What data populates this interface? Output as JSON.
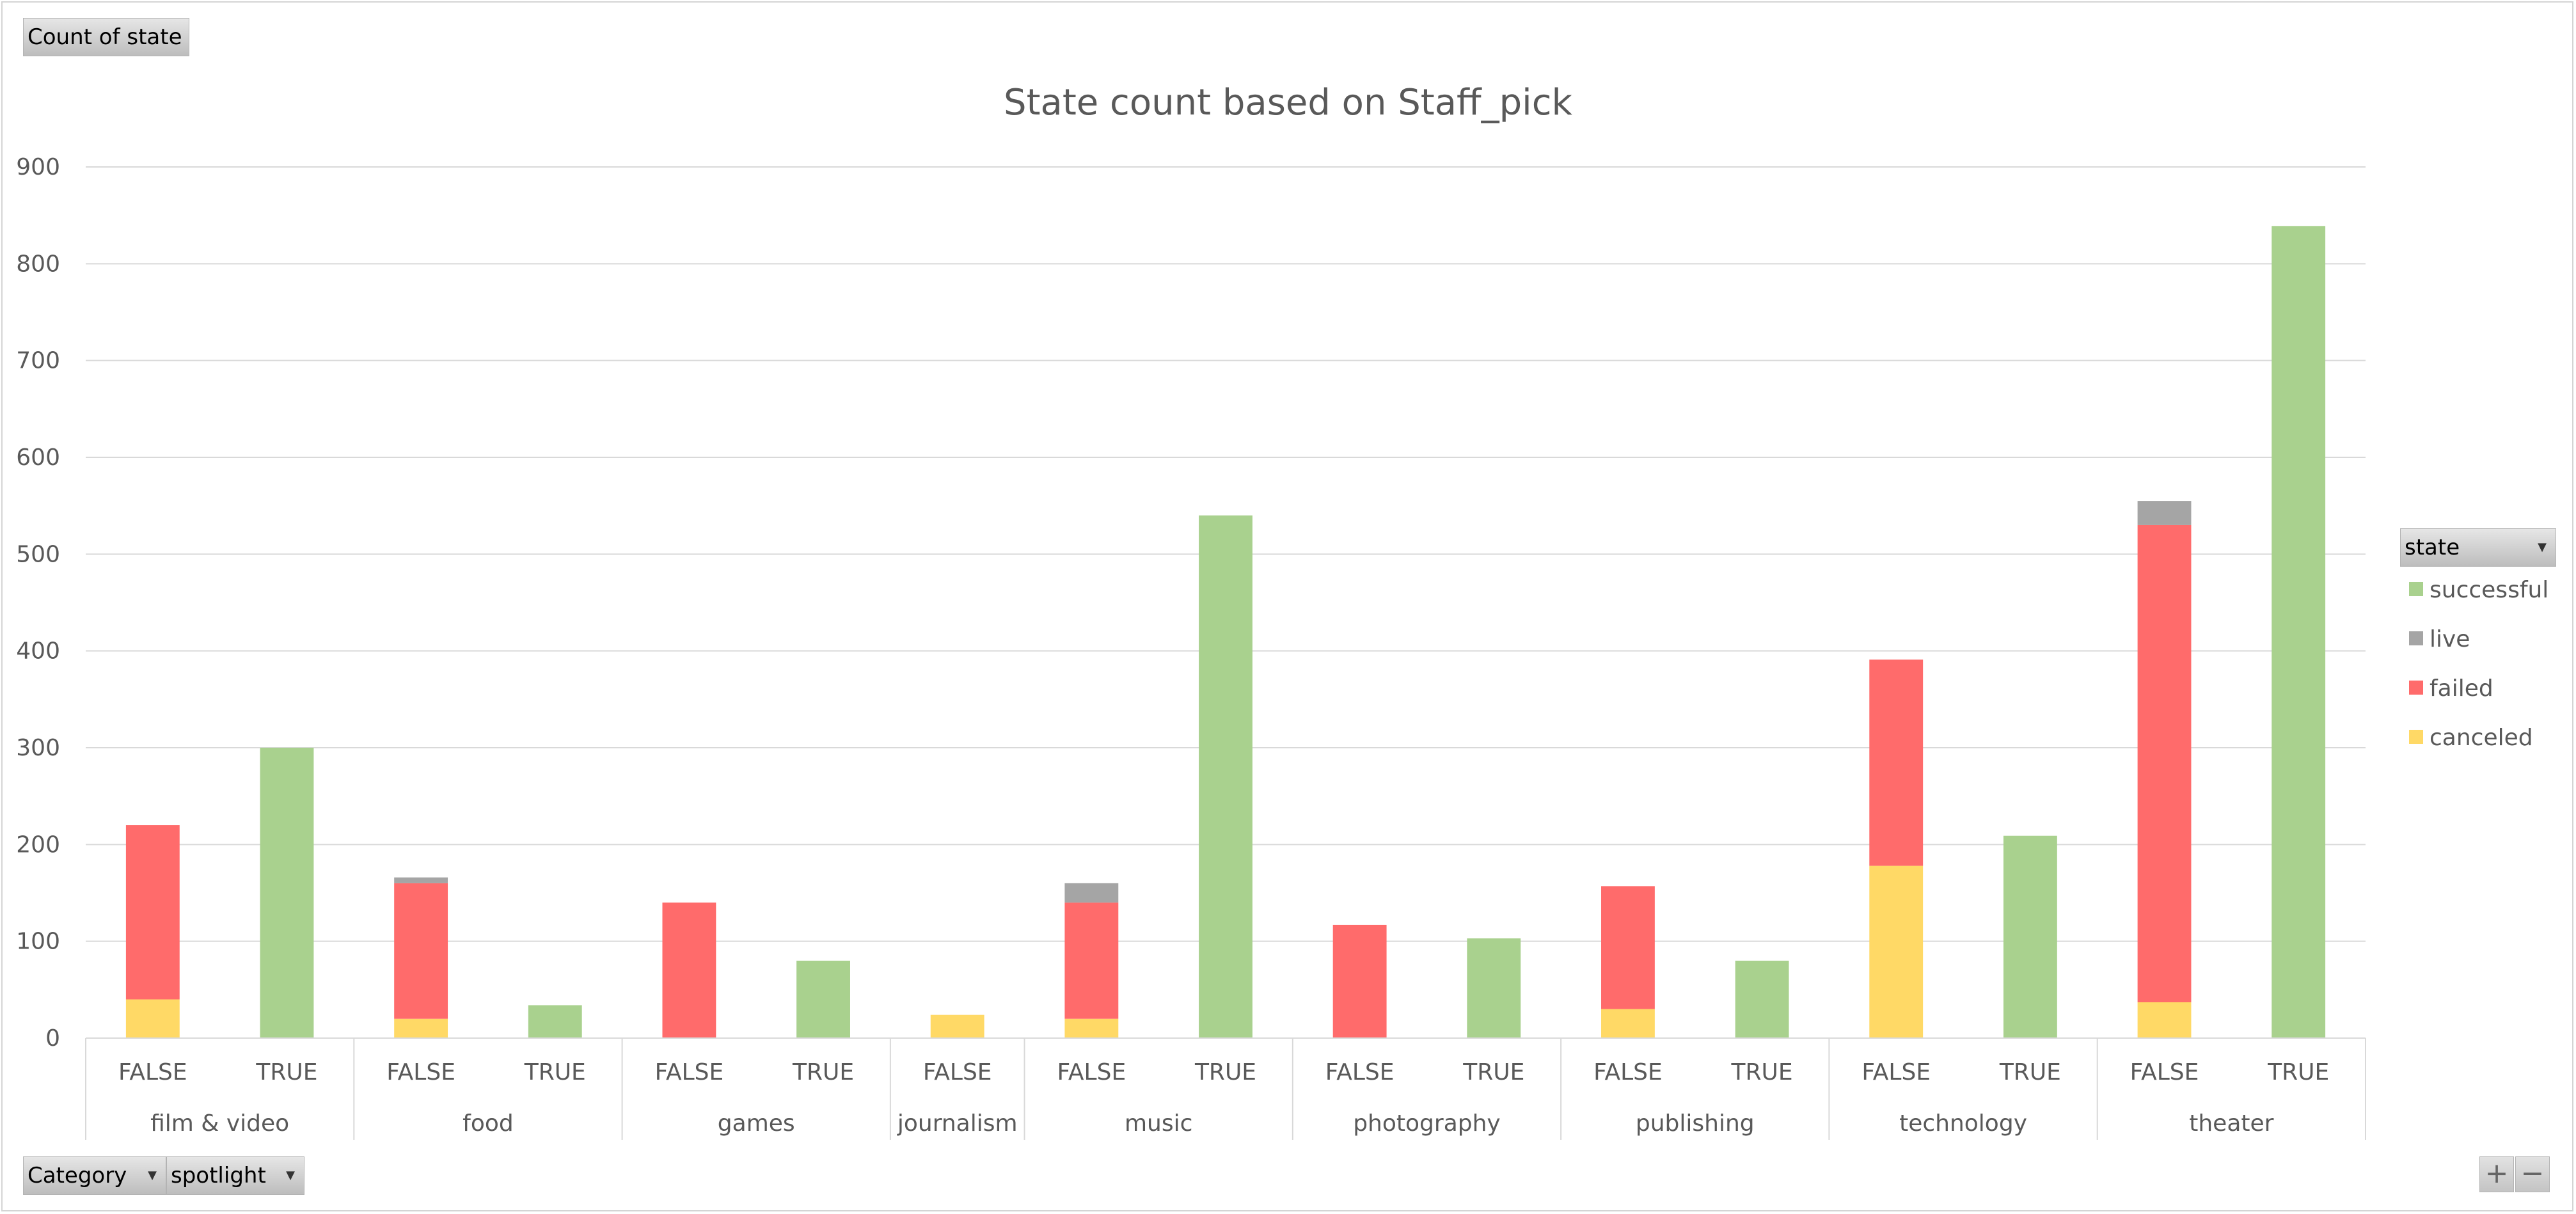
{
  "pivot": {
    "value_field": "Count of state",
    "legend_field": "state",
    "axis_fields": [
      "Category",
      "spotlight"
    ]
  },
  "controls": {
    "zoom_in": "+",
    "zoom_out": "−"
  },
  "colors": {
    "successful": "#a9d18e",
    "live": "#a5a5a5",
    "failed": "#ff6b6b",
    "canceled": "#ffd966",
    "gridline": "#d9d9d9",
    "axis_text": "#595959"
  },
  "chart_data": {
    "type": "bar",
    "stacked": true,
    "title": "State count based on Staff_pick",
    "xlabel": "",
    "ylabel": "",
    "ylim": [
      0,
      900
    ],
    "yticks": [
      0,
      100,
      200,
      300,
      400,
      500,
      600,
      700,
      800,
      900
    ],
    "grid": true,
    "legend_position": "right",
    "groups": [
      {
        "name": "film & video",
        "categories": [
          "FALSE",
          "TRUE"
        ]
      },
      {
        "name": "food",
        "categories": [
          "FALSE",
          "TRUE"
        ]
      },
      {
        "name": "games",
        "categories": [
          "FALSE",
          "TRUE"
        ]
      },
      {
        "name": "journalism",
        "categories": [
          "FALSE"
        ]
      },
      {
        "name": "music",
        "categories": [
          "FALSE",
          "TRUE"
        ]
      },
      {
        "name": "photography",
        "categories": [
          "FALSE",
          "TRUE"
        ]
      },
      {
        "name": "publishing",
        "categories": [
          "FALSE",
          "TRUE"
        ]
      },
      {
        "name": "technology",
        "categories": [
          "FALSE",
          "TRUE"
        ]
      },
      {
        "name": "theater",
        "categories": [
          "FALSE",
          "TRUE"
        ]
      }
    ],
    "series": [
      {
        "name": "canceled",
        "values": [
          40,
          0,
          20,
          0,
          0,
          0,
          24,
          20,
          0,
          0,
          0,
          30,
          0,
          178,
          0,
          37,
          0
        ]
      },
      {
        "name": "failed",
        "values": [
          180,
          0,
          140,
          0,
          140,
          0,
          0,
          120,
          0,
          117,
          0,
          127,
          0,
          213,
          0,
          493,
          0
        ]
      },
      {
        "name": "live",
        "values": [
          0,
          0,
          6,
          0,
          0,
          0,
          0,
          20,
          0,
          0,
          0,
          0,
          0,
          0,
          0,
          25,
          0
        ]
      },
      {
        "name": "successful",
        "values": [
          0,
          300,
          0,
          34,
          0,
          80,
          0,
          0,
          540,
          0,
          103,
          0,
          80,
          0,
          209,
          0,
          839
        ]
      }
    ],
    "legend_order": [
      "successful",
      "live",
      "failed",
      "canceled"
    ]
  }
}
